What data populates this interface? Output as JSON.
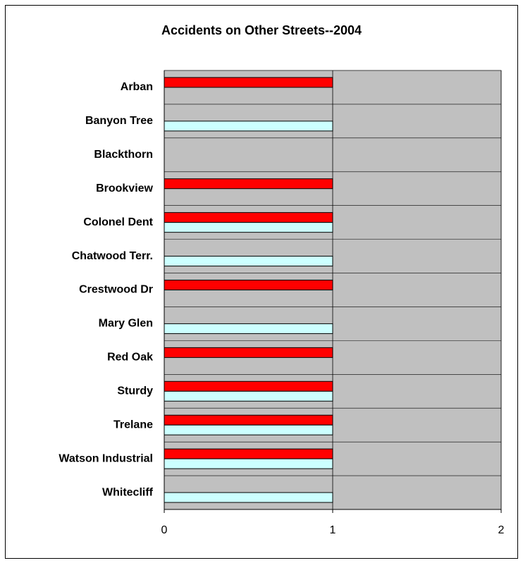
{
  "chart_data": {
    "type": "hbar",
    "title": "Accidents on Other Streets--2004",
    "categories": [
      "Arban",
      "Banyon Tree",
      "Blackthorn",
      "Brookview",
      "Colonel Dent",
      "Chatwood Terr.",
      "Crestwood Dr",
      "Mary Glen",
      "Red Oak",
      "Sturdy",
      "Trelane",
      "Watson Industrial",
      "Whitecliff"
    ],
    "series": [
      {
        "color": "#ff0000",
        "values": [
          1,
          0,
          0,
          1,
          1,
          0,
          1,
          0,
          1,
          1,
          1,
          1,
          0
        ]
      },
      {
        "color": "#ccffff",
        "values": [
          0,
          1,
          0,
          0,
          1,
          1,
          0,
          1,
          0,
          1,
          1,
          1,
          1
        ]
      }
    ],
    "xlim": [
      0,
      2
    ],
    "xticks": [
      0,
      1,
      2
    ],
    "grid": true,
    "plot_background": "#c0c0c0"
  }
}
